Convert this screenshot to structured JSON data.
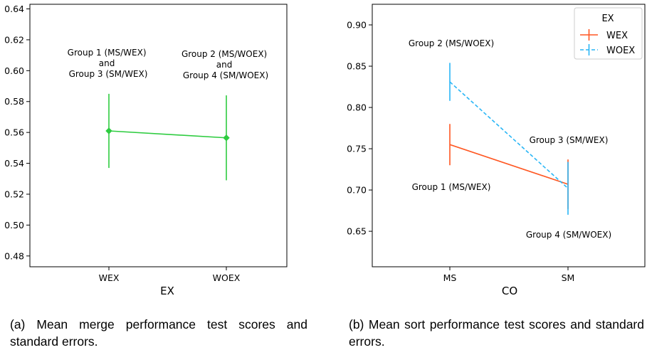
{
  "chart_data": [
    {
      "id": "a",
      "type": "line",
      "xlabel": "EX",
      "ylabel": "",
      "categories": [
        "WEX",
        "WOEX"
      ],
      "ylim": [
        0.473,
        0.643
      ],
      "yticks": [
        "0.48",
        "0.50",
        "0.52",
        "0.54",
        "0.56",
        "0.58",
        "0.60",
        "0.62",
        "0.64"
      ],
      "grid": false,
      "colors": {
        "line": "#2ecc40"
      },
      "series": [
        {
          "name": "",
          "values": [
            0.561,
            0.5565
          ],
          "lower": [
            0.537,
            0.529
          ],
          "upper": [
            0.585,
            0.584
          ],
          "style": "solid",
          "marker": "diamond"
        }
      ],
      "annotations": [
        {
          "lines": [
            "Group 1 (MS/WEX)",
            "and",
            "Group 3 (SM/WEX)"
          ]
        },
        {
          "lines": [
            "Group 2 (MS/WOEX)",
            "and",
            "Group 4 (SM/WOEX)"
          ]
        }
      ],
      "caption": "(a) Mean merge performance test scores and standard errors."
    },
    {
      "id": "b",
      "type": "line",
      "xlabel": "CO",
      "ylabel": "",
      "categories": [
        "MS",
        "SM"
      ],
      "ylim": [
        0.607,
        0.925
      ],
      "yticks": [
        "0.65",
        "0.70",
        "0.75",
        "0.80",
        "0.85",
        "0.90"
      ],
      "grid": false,
      "legend": {
        "title": "EX",
        "placement": "top-right"
      },
      "series": [
        {
          "name": "WEX",
          "color": "#ff5722",
          "style": "solid",
          "values": [
            0.755,
            0.707
          ],
          "lower": [
            0.73,
            0.677
          ],
          "upper": [
            0.78,
            0.737
          ]
        },
        {
          "name": "WOEX",
          "color": "#29b6f6",
          "style": "dashed",
          "values": [
            0.831,
            0.702
          ],
          "lower": [
            0.808,
            0.67
          ],
          "upper": [
            0.854,
            0.734
          ]
        }
      ],
      "annotations": [
        {
          "label": "Group 2 (MS/WOEX)"
        },
        {
          "label": "Group 1 (MS/WEX)"
        },
        {
          "label": "Group 3 (SM/WEX)"
        },
        {
          "label": "Group 4 (SM/WOEX)"
        }
      ],
      "caption": "(b) Mean sort performance test scores and standard errors."
    }
  ]
}
